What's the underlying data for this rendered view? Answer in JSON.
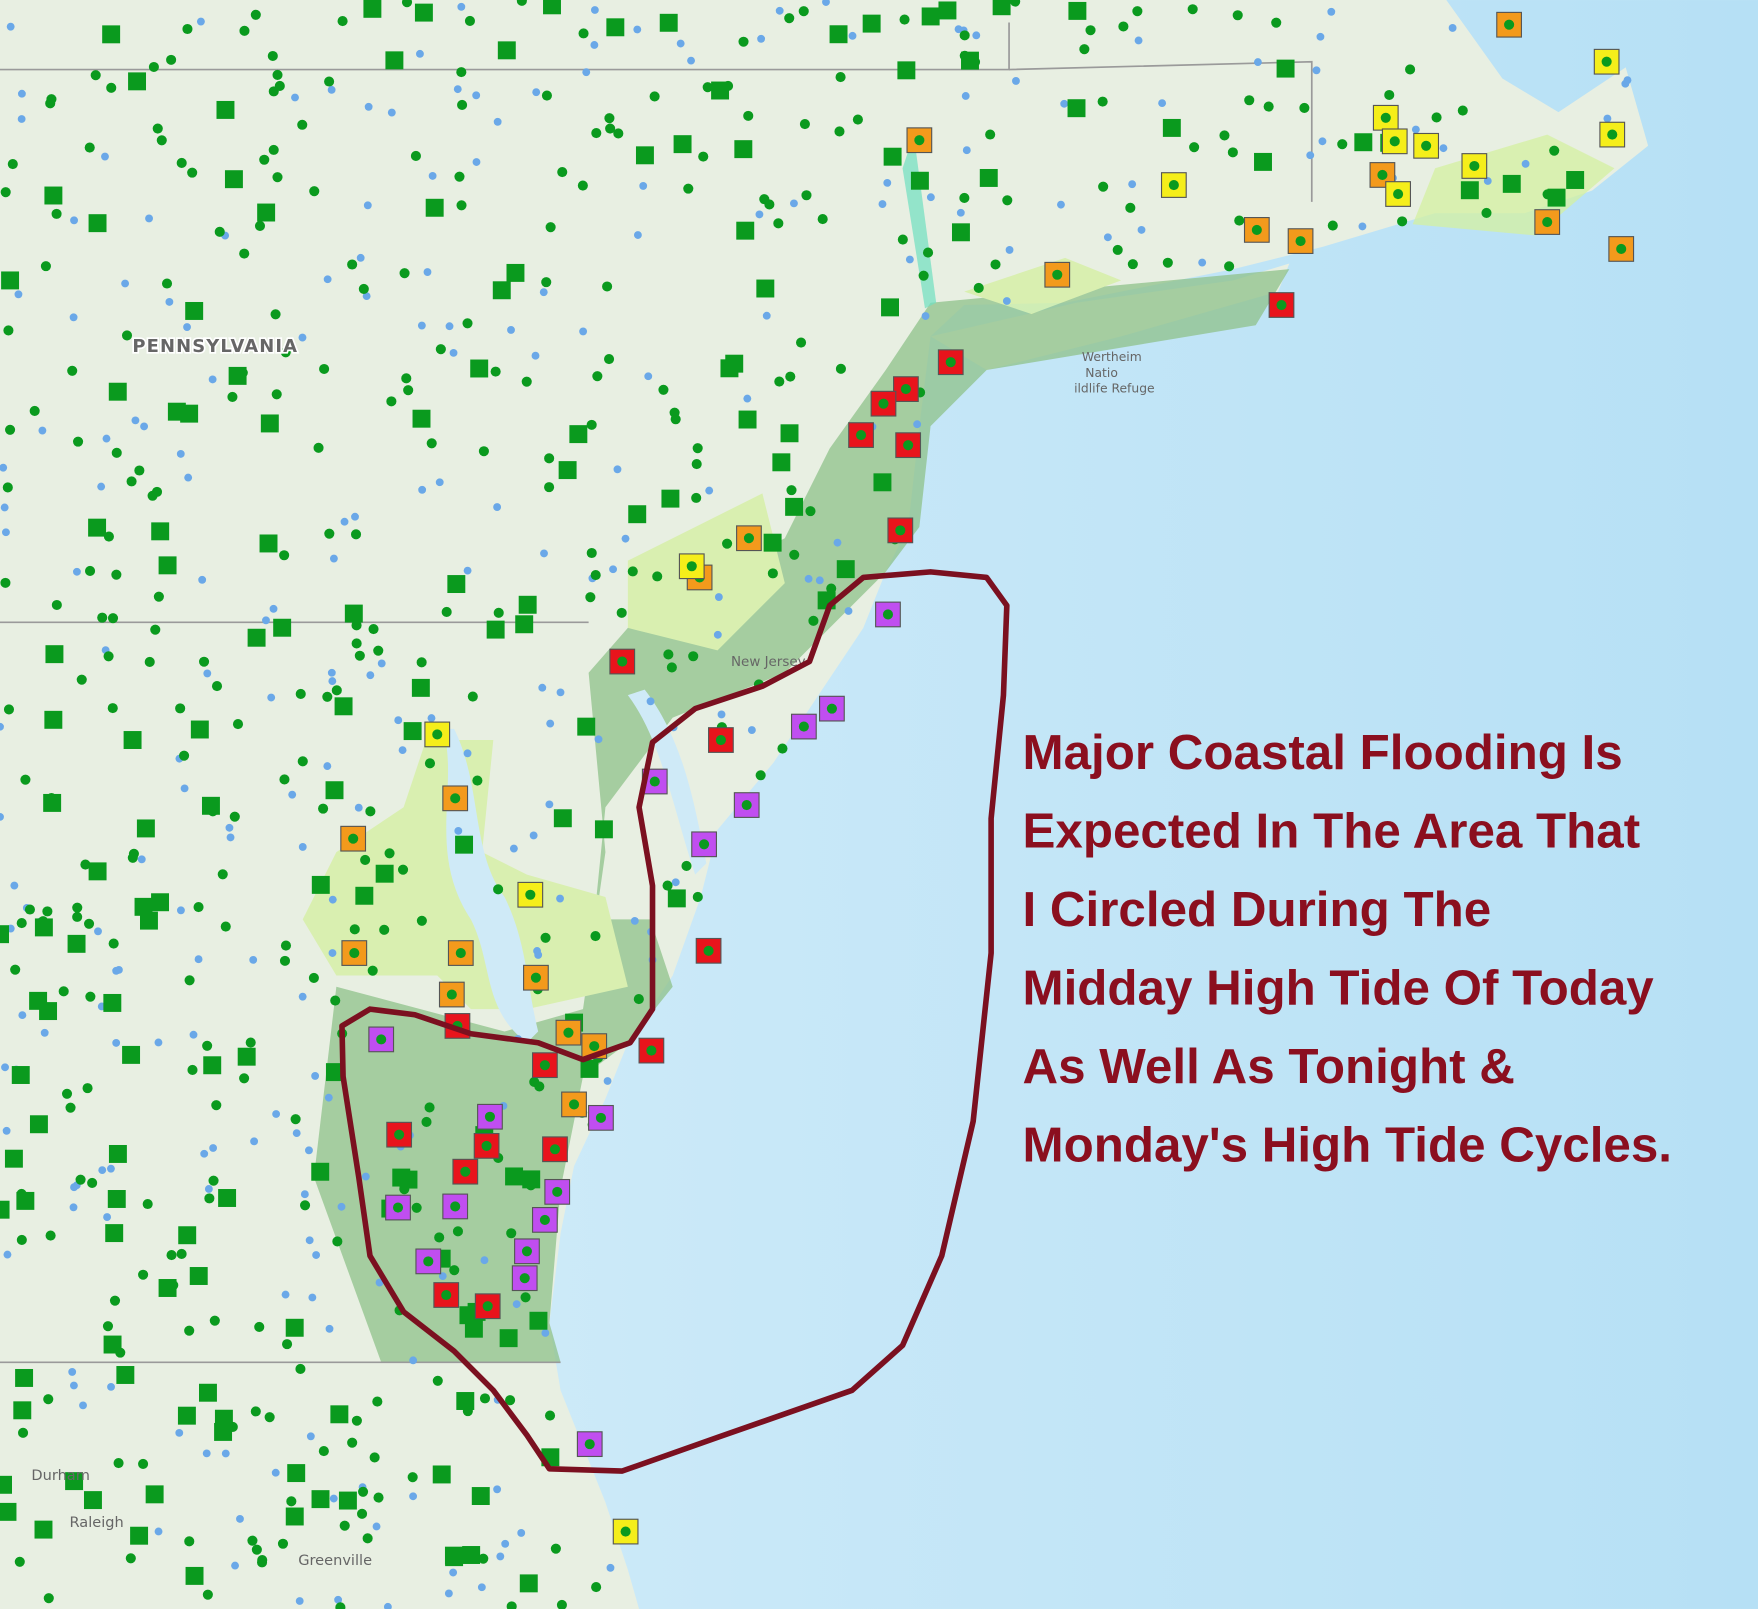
{
  "map_labels": {
    "state": "PENNSYLVANIA",
    "refuge": [
      "Wertheim",
      "Natio",
      "ildlife Refuge"
    ],
    "nj": "New Jersey",
    "cities": [
      "Durham",
      "Raleigh",
      "Greenville"
    ]
  },
  "annotation": [
    "Major Coastal Flooding Is",
    "Expected In The Area That",
    "I Circled During The",
    "Midday High Tide Of Today",
    "As Well As Tonight &",
    "Monday's High Tide Cycles."
  ]
}
